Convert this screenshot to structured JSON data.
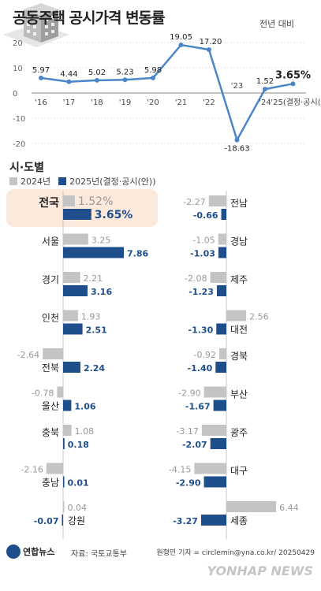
{
  "title": "공동주택 공시가격 변동률",
  "subtitle": "전년 대비",
  "section_title": "시·도별",
  "legend": {
    "series_2024": "2024년",
    "series_2025": "2025년(결정·공시(안))"
  },
  "footer": {
    "brand": "연합뉴스",
    "source": "자료: 국토교통부",
    "credit": "원형민 기자 = circlemin@yna.co.kr/ 20250429",
    "watermark": "YONHAP NEWS"
  },
  "colors": {
    "gray": "#c4c4c4",
    "blue": "#1f4e8c",
    "line": "#4a86c8",
    "highlight": "#fbe9dc"
  },
  "chart_data": [
    {
      "type": "line",
      "x": [
        "'16",
        "'17",
        "'18",
        "'19",
        "'20",
        "'21",
        "'22",
        "'23",
        "'24",
        "'25(결정·공시(안))"
      ],
      "values": [
        5.97,
        4.44,
        5.02,
        5.23,
        5.98,
        19.05,
        17.2,
        -18.63,
        1.52,
        3.65
      ],
      "labels": [
        "5.97",
        "4.44",
        "5.02",
        "5.23",
        "5.98",
        "19.05",
        "17.20",
        "-18.63",
        "1.52",
        "3.65%"
      ],
      "yticks": [
        "20",
        "10",
        "0",
        "-10",
        "-20"
      ],
      "ylim": [
        -20,
        20
      ],
      "grid": true
    },
    {
      "type": "bar",
      "series": [
        {
          "name": "2024년"
        },
        {
          "name": "2025년(결정·공시(안))"
        }
      ],
      "left": [
        {
          "region": "전국",
          "v2024": 1.52,
          "l2024": "1.52%",
          "v2025": 3.65,
          "l2025": "3.65%"
        },
        {
          "region": "서울",
          "v2024": 3.25,
          "l2024": "3.25",
          "v2025": 7.86,
          "l2025": "7.86"
        },
        {
          "region": "경기",
          "v2024": 2.21,
          "l2024": "2.21",
          "v2025": 3.16,
          "l2025": "3.16"
        },
        {
          "region": "인천",
          "v2024": 1.93,
          "l2024": "1.93",
          "v2025": 2.51,
          "l2025": "2.51"
        },
        {
          "region": "전북",
          "v2024": -2.64,
          "l2024": "-2.64",
          "v2025": 2.24,
          "l2025": "2.24"
        },
        {
          "region": "울산",
          "v2024": -0.78,
          "l2024": "-0.78",
          "v2025": 1.06,
          "l2025": "1.06"
        },
        {
          "region": "충북",
          "v2024": 1.08,
          "l2024": "1.08",
          "v2025": 0.18,
          "l2025": "0.18"
        },
        {
          "region": "충남",
          "v2024": -2.16,
          "l2024": "-2.16",
          "v2025": 0.01,
          "l2025": "0.01"
        },
        {
          "region": "강원",
          "v2024": 0.04,
          "l2024": "0.04",
          "v2025": -0.07,
          "l2025": "-0.07"
        }
      ],
      "right": [
        {
          "region": "전남",
          "v2024": -2.27,
          "l2024": "-2.27",
          "v2025": -0.66,
          "l2025": "-0.66"
        },
        {
          "region": "경남",
          "v2024": -1.05,
          "l2024": "-1.05",
          "v2025": -1.03,
          "l2025": "-1.03"
        },
        {
          "region": "제주",
          "v2024": -2.08,
          "l2024": "-2.08",
          "v2025": -1.23,
          "l2025": "-1.23"
        },
        {
          "region": "대전",
          "v2024": 2.56,
          "l2024": "2.56",
          "v2025": -1.3,
          "l2025": "-1.30"
        },
        {
          "region": "경북",
          "v2024": -0.92,
          "l2024": "-0.92",
          "v2025": -1.4,
          "l2025": "-1.40"
        },
        {
          "region": "부산",
          "v2024": -2.9,
          "l2024": "-2.90",
          "v2025": -1.67,
          "l2025": "-1.67"
        },
        {
          "region": "광주",
          "v2024": -3.17,
          "l2024": "-3.17",
          "v2025": -2.07,
          "l2025": "-2.07"
        },
        {
          "region": "대구",
          "v2024": -4.15,
          "l2024": "-4.15",
          "v2025": -2.9,
          "l2025": "-2.90"
        },
        {
          "region": "세종",
          "v2024": 6.44,
          "l2024": "6.44",
          "v2025": -3.27,
          "l2025": "-3.27"
        }
      ]
    }
  ]
}
